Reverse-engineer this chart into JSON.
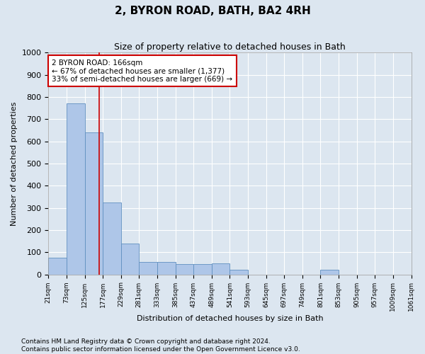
{
  "title": "2, BYRON ROAD, BATH, BA2 4RH",
  "subtitle": "Size of property relative to detached houses in Bath",
  "xlabel": "Distribution of detached houses by size in Bath",
  "ylabel": "Number of detached properties",
  "footnote": "Contains HM Land Registry data © Crown copyright and database right 2024.\nContains public sector information licensed under the Open Government Licence v3.0.",
  "property_size": 166,
  "annotation_line1": "2 BYRON ROAD: 166sqm",
  "annotation_line2": "← 67% of detached houses are smaller (1,377)",
  "annotation_line3": "33% of semi-detached houses are larger (669) →",
  "bin_left_edges": [
    21,
    73,
    125,
    177,
    229,
    281,
    333,
    385,
    437,
    489,
    541,
    593,
    645,
    697,
    749,
    801,
    853,
    905,
    957,
    1009
  ],
  "bin_labels": [
    "21sqm",
    "73sqm",
    "125sqm",
    "177sqm",
    "229sqm",
    "281sqm",
    "333sqm",
    "385sqm",
    "437sqm",
    "489sqm",
    "541sqm",
    "593sqm",
    "645sqm",
    "697sqm",
    "749sqm",
    "801sqm",
    "853sqm",
    "905sqm",
    "957sqm",
    "1009sqm",
    "1061sqm"
  ],
  "bar_heights": [
    75,
    770,
    640,
    325,
    140,
    55,
    55,
    45,
    45,
    50,
    20,
    0,
    0,
    0,
    0,
    20,
    0,
    0,
    0,
    0
  ],
  "bar_color": "#aec6e8",
  "bar_edge_color": "#6090c0",
  "vline_color": "#cc0000",
  "vline_x": 166,
  "xlim_min": 21,
  "xlim_max": 1061,
  "ylim": [
    0,
    1000
  ],
  "yticks": [
    0,
    100,
    200,
    300,
    400,
    500,
    600,
    700,
    800,
    900,
    1000
  ],
  "bg_color": "#dce6f0",
  "plot_bg_color": "#dce6f0",
  "grid_color": "#ffffff",
  "annotation_box_facecolor": "#ffffff",
  "annotation_box_edgecolor": "#cc0000",
  "title_fontsize": 11,
  "subtitle_fontsize": 9,
  "ylabel_fontsize": 8,
  "xlabel_fontsize": 8,
  "ytick_fontsize": 8,
  "xtick_fontsize": 6.5,
  "annotation_fontsize": 7.5,
  "footnote_fontsize": 6.5
}
